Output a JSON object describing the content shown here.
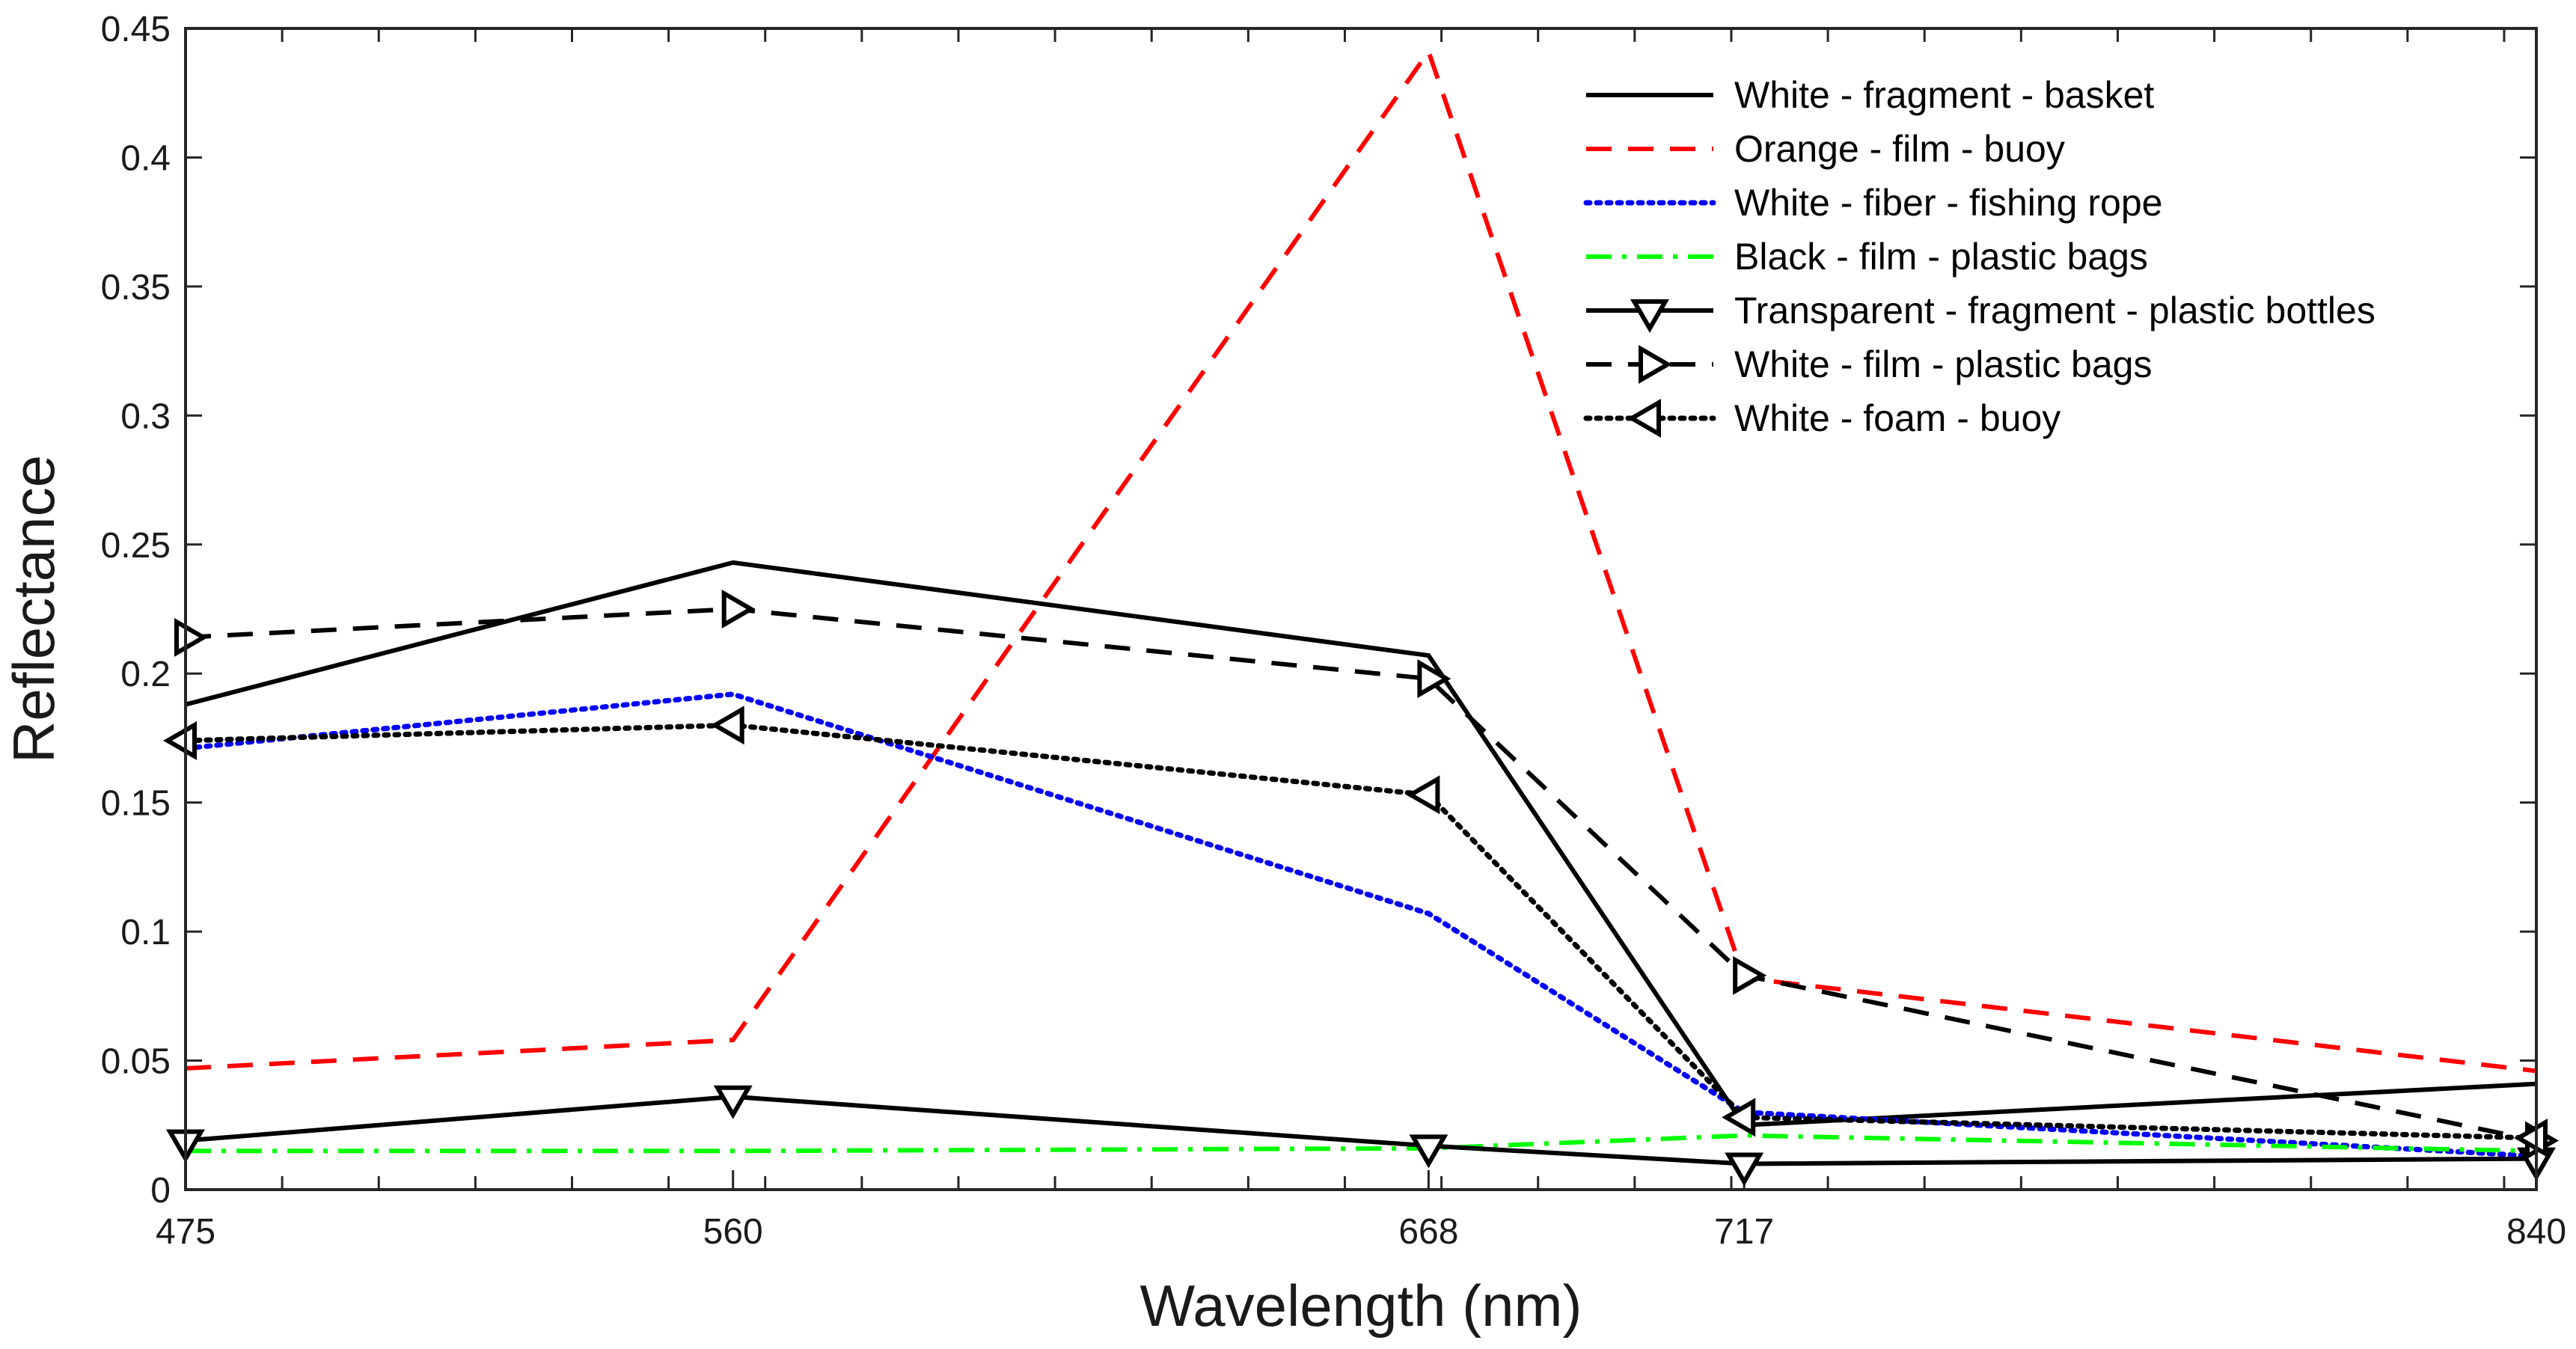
{
  "chart_data": {
    "type": "line",
    "title": "",
    "xlabel": "Wavelength (nm)",
    "ylabel": "Reflectance",
    "x": [
      475,
      560,
      668,
      717,
      840
    ],
    "x_tick_labels": [
      "475",
      "560",
      "668",
      "717",
      "840"
    ],
    "xlim": [
      475,
      840
    ],
    "ylim": [
      0,
      0.45
    ],
    "y_ticks": [
      0,
      0.05,
      0.1,
      0.15,
      0.2,
      0.25,
      0.3,
      0.35,
      0.4,
      0.45
    ],
    "y_tick_labels": [
      "0",
      "0.05",
      "0.1",
      "0.15",
      "0.2",
      "0.25",
      "0.3",
      "0.35",
      "0.4",
      "0.45"
    ],
    "grid": false,
    "legend_position": "top-right",
    "series": [
      {
        "name": "White - fragment - basket",
        "values": [
          0.188,
          0.243,
          0.207,
          0.025,
          0.041
        ],
        "color": "#000000",
        "style": "solid",
        "marker": "none"
      },
      {
        "name": "Orange - film - buoy",
        "values": [
          0.047,
          0.058,
          0.441,
          0.082,
          0.046
        ],
        "color": "#ff0000",
        "style": "dashed",
        "marker": "none"
      },
      {
        "name": "White - fiber - fishing rope",
        "values": [
          0.171,
          0.192,
          0.107,
          0.03,
          0.013
        ],
        "color": "#0000ff",
        "style": "dotted",
        "marker": "none"
      },
      {
        "name": "Black - film - plastic bags",
        "values": [
          0.015,
          0.015,
          0.016,
          0.021,
          0.015
        ],
        "color": "#00ff00",
        "style": "dashdot",
        "marker": "none"
      },
      {
        "name": "Transparent - fragment - plastic bottles",
        "values": [
          0.019,
          0.036,
          0.017,
          0.01,
          0.012
        ],
        "color": "#000000",
        "style": "solid",
        "marker": "triangle-down"
      },
      {
        "name": "White - film - plastic bags",
        "values": [
          0.214,
          0.225,
          0.198,
          0.083,
          0.019
        ],
        "color": "#000000",
        "style": "dashed",
        "marker": "triangle-right"
      },
      {
        "name": "White - foam - buoy",
        "values": [
          0.174,
          0.18,
          0.153,
          0.028,
          0.02
        ],
        "color": "#000000",
        "style": "dotted",
        "marker": "triangle-left"
      }
    ]
  }
}
